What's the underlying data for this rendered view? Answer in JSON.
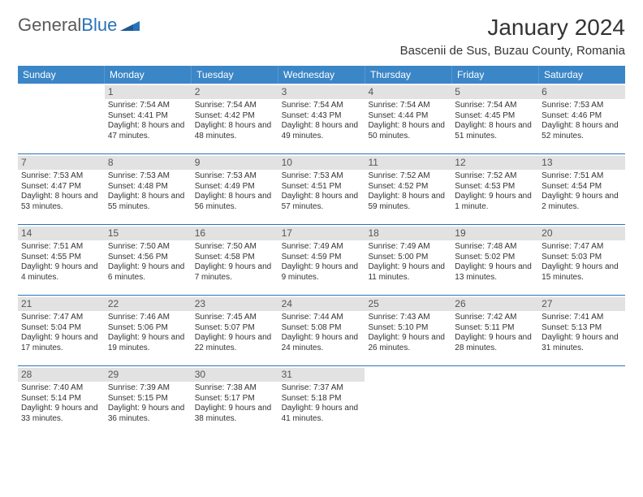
{
  "logo": {
    "text1": "General",
    "text2": "Blue"
  },
  "title": "January 2024",
  "location": "Bascenii de Sus, Buzau County, Romania",
  "colors": {
    "header_bg": "#3b86c7",
    "header_text": "#ffffff",
    "daynum_bg": "#e2e2e2",
    "week_border": "#2a73b8",
    "body_text": "#333333",
    "logo_gray": "#5a5a5a",
    "logo_blue": "#2a73b8",
    "page_bg": "#ffffff"
  },
  "fonts": {
    "title_size": 28,
    "location_size": 15,
    "dayname_size": 12,
    "daynum_size": 12,
    "detail_size": 10
  },
  "daynames": [
    "Sunday",
    "Monday",
    "Tuesday",
    "Wednesday",
    "Thursday",
    "Friday",
    "Saturday"
  ],
  "weeks": [
    [
      {
        "n": "",
        "sr": "",
        "ss": "",
        "dl": ""
      },
      {
        "n": "1",
        "sr": "Sunrise: 7:54 AM",
        "ss": "Sunset: 4:41 PM",
        "dl": "Daylight: 8 hours and 47 minutes."
      },
      {
        "n": "2",
        "sr": "Sunrise: 7:54 AM",
        "ss": "Sunset: 4:42 PM",
        "dl": "Daylight: 8 hours and 48 minutes."
      },
      {
        "n": "3",
        "sr": "Sunrise: 7:54 AM",
        "ss": "Sunset: 4:43 PM",
        "dl": "Daylight: 8 hours and 49 minutes."
      },
      {
        "n": "4",
        "sr": "Sunrise: 7:54 AM",
        "ss": "Sunset: 4:44 PM",
        "dl": "Daylight: 8 hours and 50 minutes."
      },
      {
        "n": "5",
        "sr": "Sunrise: 7:54 AM",
        "ss": "Sunset: 4:45 PM",
        "dl": "Daylight: 8 hours and 51 minutes."
      },
      {
        "n": "6",
        "sr": "Sunrise: 7:53 AM",
        "ss": "Sunset: 4:46 PM",
        "dl": "Daylight: 8 hours and 52 minutes."
      }
    ],
    [
      {
        "n": "7",
        "sr": "Sunrise: 7:53 AM",
        "ss": "Sunset: 4:47 PM",
        "dl": "Daylight: 8 hours and 53 minutes."
      },
      {
        "n": "8",
        "sr": "Sunrise: 7:53 AM",
        "ss": "Sunset: 4:48 PM",
        "dl": "Daylight: 8 hours and 55 minutes."
      },
      {
        "n": "9",
        "sr": "Sunrise: 7:53 AM",
        "ss": "Sunset: 4:49 PM",
        "dl": "Daylight: 8 hours and 56 minutes."
      },
      {
        "n": "10",
        "sr": "Sunrise: 7:53 AM",
        "ss": "Sunset: 4:51 PM",
        "dl": "Daylight: 8 hours and 57 minutes."
      },
      {
        "n": "11",
        "sr": "Sunrise: 7:52 AM",
        "ss": "Sunset: 4:52 PM",
        "dl": "Daylight: 8 hours and 59 minutes."
      },
      {
        "n": "12",
        "sr": "Sunrise: 7:52 AM",
        "ss": "Sunset: 4:53 PM",
        "dl": "Daylight: 9 hours and 1 minute."
      },
      {
        "n": "13",
        "sr": "Sunrise: 7:51 AM",
        "ss": "Sunset: 4:54 PM",
        "dl": "Daylight: 9 hours and 2 minutes."
      }
    ],
    [
      {
        "n": "14",
        "sr": "Sunrise: 7:51 AM",
        "ss": "Sunset: 4:55 PM",
        "dl": "Daylight: 9 hours and 4 minutes."
      },
      {
        "n": "15",
        "sr": "Sunrise: 7:50 AM",
        "ss": "Sunset: 4:56 PM",
        "dl": "Daylight: 9 hours and 6 minutes."
      },
      {
        "n": "16",
        "sr": "Sunrise: 7:50 AM",
        "ss": "Sunset: 4:58 PM",
        "dl": "Daylight: 9 hours and 7 minutes."
      },
      {
        "n": "17",
        "sr": "Sunrise: 7:49 AM",
        "ss": "Sunset: 4:59 PM",
        "dl": "Daylight: 9 hours and 9 minutes."
      },
      {
        "n": "18",
        "sr": "Sunrise: 7:49 AM",
        "ss": "Sunset: 5:00 PM",
        "dl": "Daylight: 9 hours and 11 minutes."
      },
      {
        "n": "19",
        "sr": "Sunrise: 7:48 AM",
        "ss": "Sunset: 5:02 PM",
        "dl": "Daylight: 9 hours and 13 minutes."
      },
      {
        "n": "20",
        "sr": "Sunrise: 7:47 AM",
        "ss": "Sunset: 5:03 PM",
        "dl": "Daylight: 9 hours and 15 minutes."
      }
    ],
    [
      {
        "n": "21",
        "sr": "Sunrise: 7:47 AM",
        "ss": "Sunset: 5:04 PM",
        "dl": "Daylight: 9 hours and 17 minutes."
      },
      {
        "n": "22",
        "sr": "Sunrise: 7:46 AM",
        "ss": "Sunset: 5:06 PM",
        "dl": "Daylight: 9 hours and 19 minutes."
      },
      {
        "n": "23",
        "sr": "Sunrise: 7:45 AM",
        "ss": "Sunset: 5:07 PM",
        "dl": "Daylight: 9 hours and 22 minutes."
      },
      {
        "n": "24",
        "sr": "Sunrise: 7:44 AM",
        "ss": "Sunset: 5:08 PM",
        "dl": "Daylight: 9 hours and 24 minutes."
      },
      {
        "n": "25",
        "sr": "Sunrise: 7:43 AM",
        "ss": "Sunset: 5:10 PM",
        "dl": "Daylight: 9 hours and 26 minutes."
      },
      {
        "n": "26",
        "sr": "Sunrise: 7:42 AM",
        "ss": "Sunset: 5:11 PM",
        "dl": "Daylight: 9 hours and 28 minutes."
      },
      {
        "n": "27",
        "sr": "Sunrise: 7:41 AM",
        "ss": "Sunset: 5:13 PM",
        "dl": "Daylight: 9 hours and 31 minutes."
      }
    ],
    [
      {
        "n": "28",
        "sr": "Sunrise: 7:40 AM",
        "ss": "Sunset: 5:14 PM",
        "dl": "Daylight: 9 hours and 33 minutes."
      },
      {
        "n": "29",
        "sr": "Sunrise: 7:39 AM",
        "ss": "Sunset: 5:15 PM",
        "dl": "Daylight: 9 hours and 36 minutes."
      },
      {
        "n": "30",
        "sr": "Sunrise: 7:38 AM",
        "ss": "Sunset: 5:17 PM",
        "dl": "Daylight: 9 hours and 38 minutes."
      },
      {
        "n": "31",
        "sr": "Sunrise: 7:37 AM",
        "ss": "Sunset: 5:18 PM",
        "dl": "Daylight: 9 hours and 41 minutes."
      },
      {
        "n": "",
        "sr": "",
        "ss": "",
        "dl": ""
      },
      {
        "n": "",
        "sr": "",
        "ss": "",
        "dl": ""
      },
      {
        "n": "",
        "sr": "",
        "ss": "",
        "dl": ""
      }
    ]
  ]
}
